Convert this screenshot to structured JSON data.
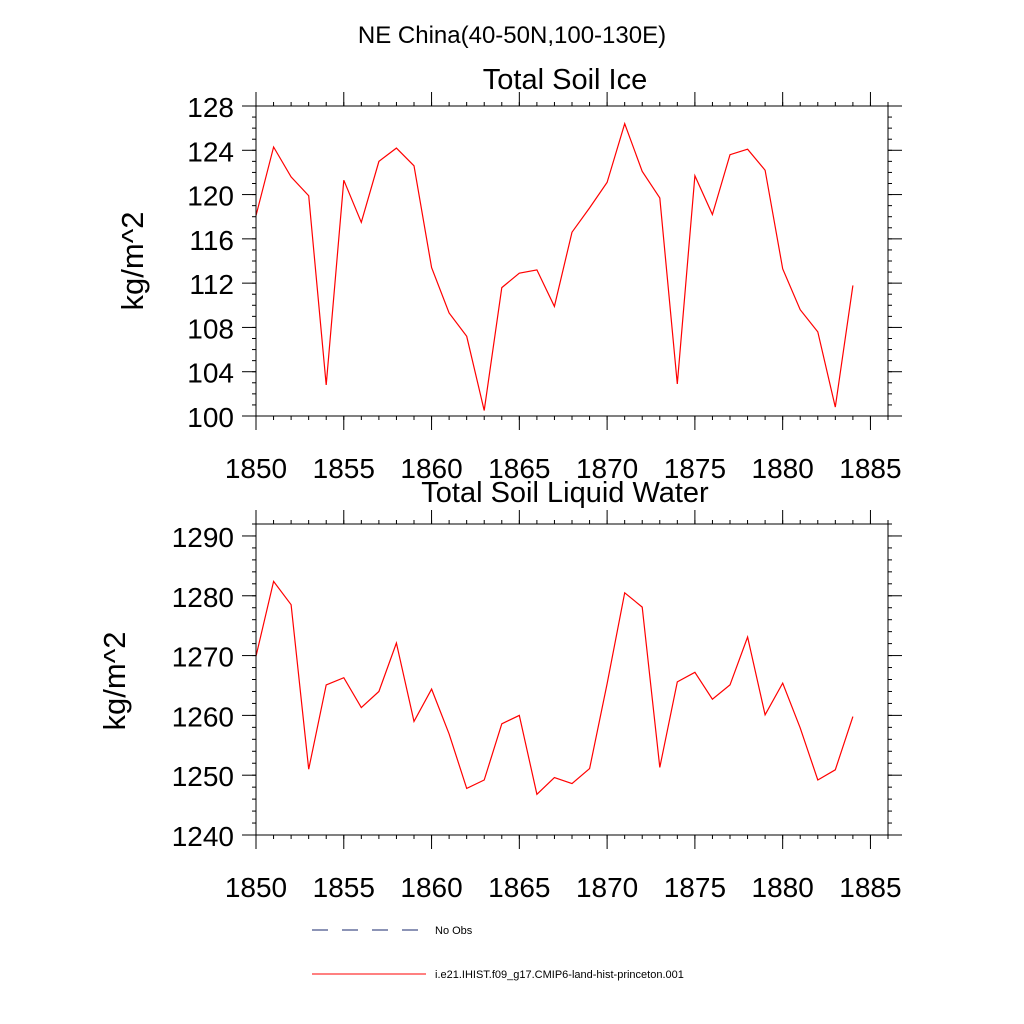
{
  "figure": {
    "main_title": "NE China(40-50N,100-130E)"
  },
  "chart_data": [
    {
      "type": "line",
      "title": "Total Soil Ice",
      "ylabel": "kg/m^2",
      "xlabel": "",
      "xlim": [
        1850,
        1886
      ],
      "ylim": [
        100,
        128
      ],
      "xticks": [
        "1850",
        "1855",
        "1860",
        "1865",
        "1870",
        "1875",
        "1880",
        "1885"
      ],
      "yticks": [
        "100",
        "104",
        "108",
        "112",
        "116",
        "120",
        "124",
        "128"
      ],
      "grid": false,
      "series": [
        {
          "name": "i.e21.IHIST.f09_g17.CMIP6-land-hist-princeton.001",
          "color": "#ff0000",
          "x": [
            1850,
            1851,
            1852,
            1853,
            1854,
            1855,
            1856,
            1857,
            1858,
            1859,
            1860,
            1861,
            1862,
            1863,
            1864,
            1865,
            1866,
            1867,
            1868,
            1869,
            1870,
            1871,
            1872,
            1873,
            1874,
            1875,
            1876,
            1877,
            1878,
            1879,
            1880,
            1881,
            1882,
            1883,
            1884
          ],
          "y": [
            118.1,
            124.3,
            121.6,
            119.9,
            102.8,
            121.3,
            117.5,
            123.0,
            124.2,
            122.6,
            113.4,
            109.3,
            107.2,
            100.5,
            111.6,
            112.9,
            113.2,
            109.9,
            116.6,
            118.8,
            121.1,
            126.4,
            122.1,
            119.7,
            102.9,
            121.7,
            118.2,
            123.6,
            124.1,
            122.2,
            113.3,
            109.6,
            107.6,
            100.8,
            111.8
          ]
        }
      ]
    },
    {
      "type": "line",
      "title": "Total Soil Liquid Water",
      "ylabel": "kg/m^2",
      "xlabel": "",
      "xlim": [
        1850,
        1886
      ],
      "ylim": [
        1240,
        1292
      ],
      "xticks": [
        "1850",
        "1855",
        "1860",
        "1865",
        "1870",
        "1875",
        "1880",
        "1885"
      ],
      "yticks": [
        "1240",
        "1250",
        "1260",
        "1270",
        "1280",
        "1290"
      ],
      "grid": false,
      "series": [
        {
          "name": "i.e21.IHIST.f09_g17.CMIP6-land-hist-princeton.001",
          "color": "#ff0000",
          "x": [
            1850,
            1851,
            1852,
            1853,
            1854,
            1855,
            1856,
            1857,
            1858,
            1859,
            1860,
            1861,
            1862,
            1863,
            1864,
            1865,
            1866,
            1867,
            1868,
            1869,
            1870,
            1871,
            1872,
            1873,
            1874,
            1875,
            1876,
            1877,
            1878,
            1879,
            1880,
            1881,
            1882,
            1883,
            1884
          ],
          "y": [
            1269.9,
            1282.4,
            1278.5,
            1251.0,
            1265.1,
            1266.3,
            1261.3,
            1264.0,
            1272.1,
            1259.0,
            1264.4,
            1256.9,
            1247.8,
            1249.2,
            1258.6,
            1260.0,
            1246.8,
            1249.6,
            1248.6,
            1251.1,
            1265.3,
            1280.5,
            1278.1,
            1251.3,
            1265.6,
            1267.2,
            1262.7,
            1265.1,
            1273.1,
            1260.1,
            1265.4,
            1257.9,
            1249.2,
            1250.9,
            1259.8
          ]
        }
      ]
    }
  ],
  "legend": {
    "placement": "bottom",
    "items": [
      {
        "label": "No Obs",
        "style": "dashed",
        "color": "#1a2a6c"
      },
      {
        "label": "i.e21.IHIST.f09_g17.CMIP6-land-hist-princeton.001",
        "style": "solid",
        "color": "#ff0000"
      }
    ]
  }
}
